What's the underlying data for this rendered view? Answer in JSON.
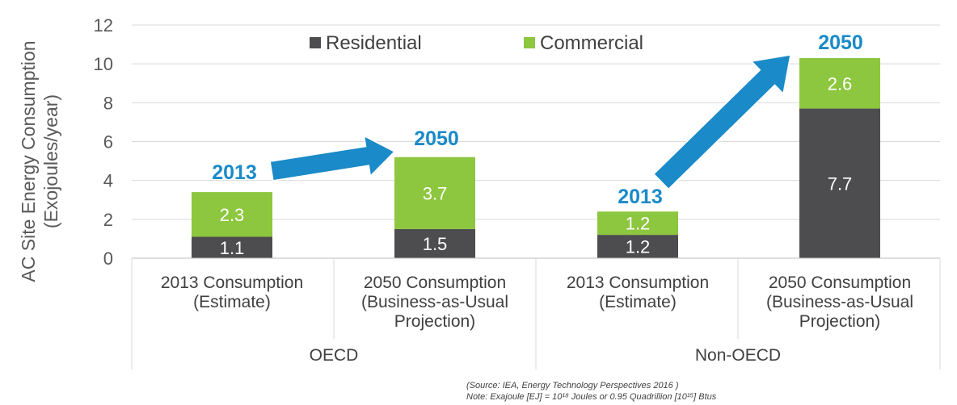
{
  "chart_data": {
    "type": "bar",
    "stacked": true,
    "ylabel_lines": [
      "AC Site Energy Consumption",
      "(Exojoules/year)"
    ],
    "ylim": [
      0,
      12
    ],
    "yticks": [
      0,
      2,
      4,
      6,
      8,
      10,
      12
    ],
    "grid": true,
    "legend_position": "top",
    "categories": [
      [
        "2013 Consumption",
        "(Estimate)"
      ],
      [
        "2050 Consumption",
        "(Business-as-Usual",
        "Projection)"
      ],
      [
        "2013 Consumption",
        "(Estimate)"
      ],
      [
        "2050 Consumption",
        "(Business-as-Usual",
        "Projection)"
      ]
    ],
    "groups": [
      {
        "label": "OECD",
        "categories": [
          0,
          1
        ]
      },
      {
        "label": "Non-OECD",
        "categories": [
          2,
          3
        ]
      }
    ],
    "series": [
      {
        "name": "Residential",
        "color": "#4d4d4f",
        "values": [
          1.1,
          1.5,
          1.2,
          7.7
        ]
      },
      {
        "name": "Commercial",
        "color": "#8dc63f",
        "values": [
          2.3,
          3.7,
          1.2,
          2.6
        ]
      }
    ],
    "annotations": {
      "years": [
        "2013",
        "2050",
        "2013",
        "2050"
      ],
      "arrow_color": "#1a8ac8"
    },
    "notes": [
      "(Source: IEA, Energy Technology Perspectives 2016 )",
      "Note: Exajoule [EJ] = 10^18 Joules or 0.95 Quadrillion [10^15] Btus"
    ]
  }
}
